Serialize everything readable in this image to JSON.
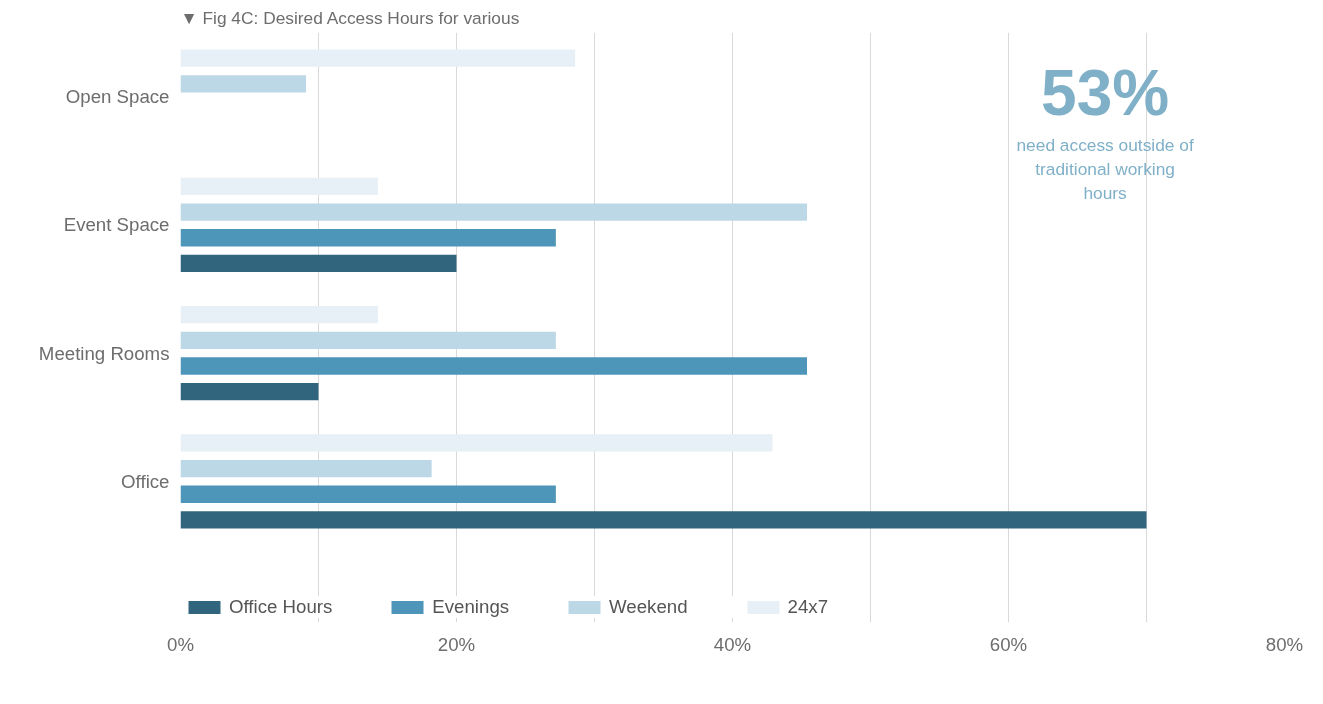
{
  "chart_data": {
    "type": "bar",
    "orientation": "horizontal",
    "title": "▼ Fig 4C: Desired Access Hours for various",
    "categories": [
      "Open Space",
      "Event Space",
      "Meeting Rooms",
      "Office"
    ],
    "series": [
      {
        "name": "Office Hours",
        "color": "#31657e",
        "values": [
          null,
          20,
          10,
          70
        ]
      },
      {
        "name": "Evenings",
        "color": "#4e96b9",
        "values": [
          null,
          27.2,
          45.4,
          27.2
        ]
      },
      {
        "name": "Weekend",
        "color": "#bcd8e6",
        "values": [
          9.1,
          45.4,
          27.2,
          18.2
        ]
      },
      {
        "name": "24x7",
        "color": "#e6f0f6",
        "values": [
          28.6,
          14.3,
          14.3,
          42.9
        ]
      }
    ],
    "xlim": [
      0,
      80
    ],
    "xticks": [
      {
        "value": 0,
        "label": "0%"
      },
      {
        "value": 10,
        "label": null
      },
      {
        "value": 20,
        "label": "20%"
      },
      {
        "value": 30,
        "label": null
      },
      {
        "value": 40,
        "label": "40%"
      },
      {
        "value": 50,
        "label": null
      },
      {
        "value": 60,
        "label": "60%"
      },
      {
        "value": 70,
        "label": null
      },
      {
        "value": 80,
        "label": "80%"
      }
    ],
    "grid": "x",
    "legend": "bottom",
    "annotations": [
      "53%",
      "need access outside of traditional working hours"
    ]
  }
}
